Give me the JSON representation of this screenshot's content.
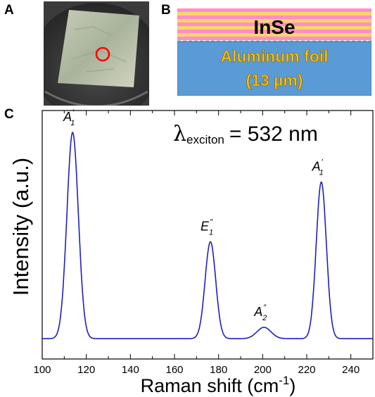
{
  "panels": {
    "a": "A",
    "b": "B",
    "c": "C"
  },
  "schematic": {
    "top_layer": "InSe",
    "bottom_layer": "Aluminum foil",
    "thickness": "(13 µm)",
    "colors": {
      "stripe_pink": "#ff8ec8",
      "stripe_yellow": "#f8d66a",
      "foil": "#5b9bd5",
      "foil_text": "#ffc000"
    }
  },
  "photo": {
    "marker_color": "#ff0000"
  },
  "chart_data": {
    "type": "line",
    "xlabel": "Raman shift (cm",
    "xlabel_sup": "-1",
    "xlabel_close": ")",
    "ylabel": "Intensity (a.u.)",
    "xlim": [
      100,
      250
    ],
    "xticks": [
      100,
      120,
      140,
      160,
      180,
      200,
      220,
      240
    ],
    "yticks_shown": false,
    "annotation": {
      "symbol": "λ",
      "subscript": "exciton",
      "text": "= 532 nm"
    },
    "line_color": "#1f1fbf",
    "baseline": 0.02,
    "peaks": [
      {
        "center": 113.8,
        "height": 1.0,
        "width": 2.6,
        "label": "A",
        "sup": "′",
        "sub": "1"
      },
      {
        "center": 176.3,
        "height": 0.47,
        "width": 2.4,
        "label": "E",
        "sup": "″",
        "sub": "1"
      },
      {
        "center": 200.6,
        "height": 0.055,
        "width": 3.2,
        "label": "A",
        "sup": "″",
        "sub": "2"
      },
      {
        "center": 226.6,
        "height": 0.76,
        "width": 2.3,
        "label": "A",
        "sup": "′",
        "sub": "1"
      }
    ]
  }
}
